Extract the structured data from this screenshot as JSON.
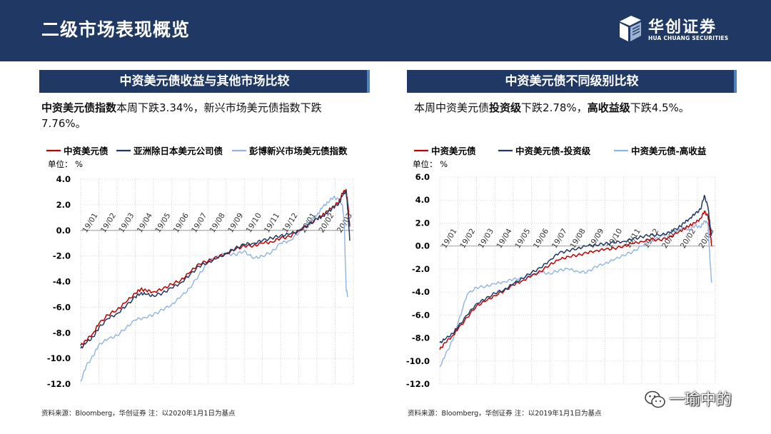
{
  "header": {
    "title": "二级市场表现概览",
    "logo_cn": "华创证券",
    "logo_en": "HUA CHUANG SECURITIES"
  },
  "left": {
    "panel_title": "中资美元债收益与其他市场比较",
    "desc": {
      "p1_bold": "中资美元债指数",
      "p1_rest": "本周下跌3.34%，新兴市场美元债指数下跌7.76%。"
    },
    "source": "资料来源：Bloomberg，华创证券    注：以2020年1月1日为基点"
  },
  "right": {
    "panel_title": "中资美元债不同级别比较",
    "desc": {
      "t1": "本周中资美元债",
      "b1": "投资级",
      "t2": "下跌2.78%，",
      "b2": "高收益级",
      "t3": "下跌4.5%。"
    },
    "source": "资料来源：Bloomberg，华创证券    注：以2019年1月1日为基点"
  },
  "watermark": {
    "text": "一瑜中的"
  },
  "chart_data": [
    {
      "type": "line",
      "unit_label": "单位：  %",
      "ylim": [
        -12,
        4
      ],
      "yticks": [
        "4.0",
        "2.0",
        "0.0",
        "-2.0",
        "-4.0",
        "-6.0",
        "-8.0",
        "-10.0",
        "-12.0"
      ],
      "xticks": [
        "19/01",
        "19/02",
        "19/03",
        "19/04",
        "19/05",
        "19/06",
        "19/07",
        "19/08",
        "19/09",
        "19/10",
        "19/11",
        "19/12",
        "20/01",
        "20/02",
        "20/03"
      ],
      "grid": true,
      "legend": "top",
      "series": [
        {
          "name": "中资美元债",
          "color": "#c00000",
          "x": [
            0,
            0.3,
            0.7,
            1,
            1.5,
            2,
            2.5,
            3,
            3.3,
            3.6,
            4,
            4.5,
            5,
            5.5,
            6,
            6.5,
            7,
            7.5,
            8,
            8.5,
            9,
            9.5,
            10,
            10.5,
            11,
            11.5,
            12,
            12.5,
            13,
            13.3,
            13.6,
            13.9,
            14.2,
            14.4,
            14.6,
            14.7,
            14.8
          ],
          "y": [
            -9.0,
            -8.6,
            -8.0,
            -7.3,
            -6.6,
            -6.2,
            -5.6,
            -4.9,
            -4.6,
            -4.7,
            -4.8,
            -4.6,
            -4.2,
            -3.9,
            -3.3,
            -2.6,
            -2.4,
            -2.1,
            -1.8,
            -1.5,
            -1.2,
            -1.2,
            -1.0,
            -0.9,
            -0.6,
            -0.5,
            0.0,
            0.4,
            0.9,
            1.2,
            1.5,
            1.9,
            2.2,
            2.9,
            3.2,
            2.0,
            0.3
          ]
        },
        {
          "name": "亚洲除日本美元公司债",
          "color": "#1f3864",
          "x": [
            0,
            0.3,
            0.7,
            1,
            1.5,
            2,
            2.5,
            3,
            3.3,
            3.6,
            4,
            4.5,
            5,
            5.5,
            6,
            6.5,
            7,
            7.5,
            8,
            8.5,
            9,
            9.5,
            10,
            10.5,
            11,
            11.5,
            12,
            12.5,
            13,
            13.3,
            13.6,
            13.9,
            14.2,
            14.4,
            14.6,
            14.7,
            14.8
          ],
          "y": [
            -9.2,
            -8.8,
            -8.3,
            -7.6,
            -6.9,
            -6.5,
            -5.9,
            -5.2,
            -4.9,
            -5.0,
            -5.1,
            -4.9,
            -4.5,
            -4.1,
            -3.5,
            -2.8,
            -2.5,
            -2.2,
            -1.8,
            -1.4,
            -1.1,
            -1.0,
            -0.8,
            -0.6,
            -0.4,
            -0.3,
            0.0,
            0.4,
            0.9,
            1.1,
            1.4,
            1.8,
            2.1,
            2.7,
            3.1,
            1.5,
            -0.8
          ]
        },
        {
          "name": "彭博新兴市场美元债指数",
          "color": "#8db4e2",
          "x": [
            0,
            0.3,
            0.7,
            1,
            1.5,
            2,
            2.5,
            3,
            3.5,
            4,
            4.5,
            5,
            5.5,
            6,
            6.5,
            7,
            7.5,
            8,
            8.5,
            9,
            9.5,
            10,
            10.5,
            11,
            11.5,
            12,
            12.5,
            13,
            13.3,
            13.6,
            13.9,
            14.2,
            14.4,
            14.5,
            14.6,
            14.7
          ],
          "y": [
            -11.8,
            -10.6,
            -9.8,
            -8.9,
            -8.5,
            -8.2,
            -7.6,
            -7.0,
            -6.8,
            -6.6,
            -6.2,
            -5.8,
            -5.2,
            -4.5,
            -3.5,
            -2.5,
            -2.0,
            -1.8,
            -1.9,
            -1.6,
            -2.2,
            -2.0,
            -1.7,
            -1.0,
            -0.8,
            -0.2,
            0.6,
            1.2,
            1.8,
            2.2,
            2.6,
            2.4,
            2.0,
            0.5,
            -4.5,
            -5.2
          ]
        }
      ]
    },
    {
      "type": "line",
      "unit_label": "单位：  %",
      "ylim": [
        -12,
        6
      ],
      "yticks": [
        "6.0",
        "4.0",
        "2.0",
        "0.0",
        "-2.0",
        "-4.0",
        "-6.0",
        "-8.0",
        "-10.0",
        "-12.0"
      ],
      "xticks": [
        "19/01",
        "19/02",
        "19/03",
        "19/04",
        "19/05",
        "19/06",
        "19/07",
        "19/08",
        "19/09",
        "19/10",
        "19/11",
        "19/12",
        "20/01",
        "20/02",
        "20/03"
      ],
      "grid": true,
      "legend": "top",
      "series": [
        {
          "name": "中资美元债",
          "color": "#c00000",
          "x": [
            0,
            0.3,
            0.7,
            1,
            1.5,
            2,
            2.5,
            3,
            3.5,
            4,
            4.5,
            5,
            5.5,
            6,
            6.5,
            7,
            7.5,
            8,
            8.5,
            9,
            9.5,
            10,
            10.5,
            11,
            11.5,
            12,
            12.5,
            13,
            13.3,
            13.6,
            13.9,
            14.2,
            14.4,
            14.6,
            14.7,
            14.8
          ],
          "y": [
            -9.0,
            -8.4,
            -7.8,
            -7.2,
            -6.2,
            -5.2,
            -4.8,
            -4.3,
            -3.9,
            -3.4,
            -3.0,
            -2.6,
            -2.2,
            -1.6,
            -1.2,
            -0.9,
            -0.8,
            -0.6,
            -0.4,
            -0.3,
            -0.2,
            0.0,
            0.2,
            0.4,
            0.6,
            0.5,
            0.8,
            1.2,
            1.5,
            1.8,
            2.0,
            2.4,
            3.0,
            2.6,
            1.5,
            0.0
          ]
        },
        {
          "name": "中资美元债-投资级",
          "color": "#1f3864",
          "x": [
            0,
            0.3,
            0.7,
            1,
            1.5,
            2,
            2.5,
            3,
            3.5,
            4,
            4.5,
            5,
            5.5,
            6,
            6.5,
            7,
            7.5,
            8,
            8.5,
            9,
            9.5,
            10,
            10.5,
            11,
            11.5,
            12,
            12.5,
            13,
            13.3,
            13.6,
            13.9,
            14.2,
            14.4,
            14.6,
            14.7,
            14.8
          ],
          "y": [
            -8.4,
            -8.1,
            -7.6,
            -7.0,
            -6.0,
            -5.0,
            -4.6,
            -4.1,
            -3.8,
            -3.3,
            -2.8,
            -2.3,
            -1.9,
            -1.2,
            -0.6,
            -0.4,
            -0.2,
            0.0,
            0.1,
            0.2,
            0.3,
            0.4,
            0.6,
            0.8,
            1.0,
            0.9,
            1.2,
            1.6,
            2.0,
            2.4,
            2.8,
            3.2,
            4.4,
            3.4,
            2.0,
            0.9
          ]
        },
        {
          "name": "中资美元债-高收益",
          "color": "#8db4e2",
          "x": [
            0,
            0.3,
            0.7,
            1,
            1.5,
            2,
            2.5,
            3,
            3.5,
            4,
            4.5,
            5,
            5.5,
            6,
            6.5,
            7,
            7.5,
            8,
            8.5,
            9,
            9.5,
            10,
            10.5,
            11,
            11.5,
            12,
            12.5,
            13,
            13.3,
            13.6,
            13.9,
            14.2,
            14.4,
            14.6,
            14.7,
            14.8
          ],
          "y": [
            -10.5,
            -9.5,
            -8.2,
            -6.6,
            -4.2,
            -3.6,
            -3.5,
            -3.3,
            -3.1,
            -2.9,
            -2.8,
            -2.5,
            -2.3,
            -2.4,
            -2.1,
            -2.0,
            -2.2,
            -2.3,
            -1.8,
            -1.5,
            -1.2,
            -0.8,
            -0.5,
            0.0,
            0.4,
            0.8,
            1.2,
            1.4,
            1.6,
            1.4,
            1.8,
            1.6,
            2.2,
            2.0,
            -1.0,
            -3.2
          ]
        }
      ]
    }
  ]
}
